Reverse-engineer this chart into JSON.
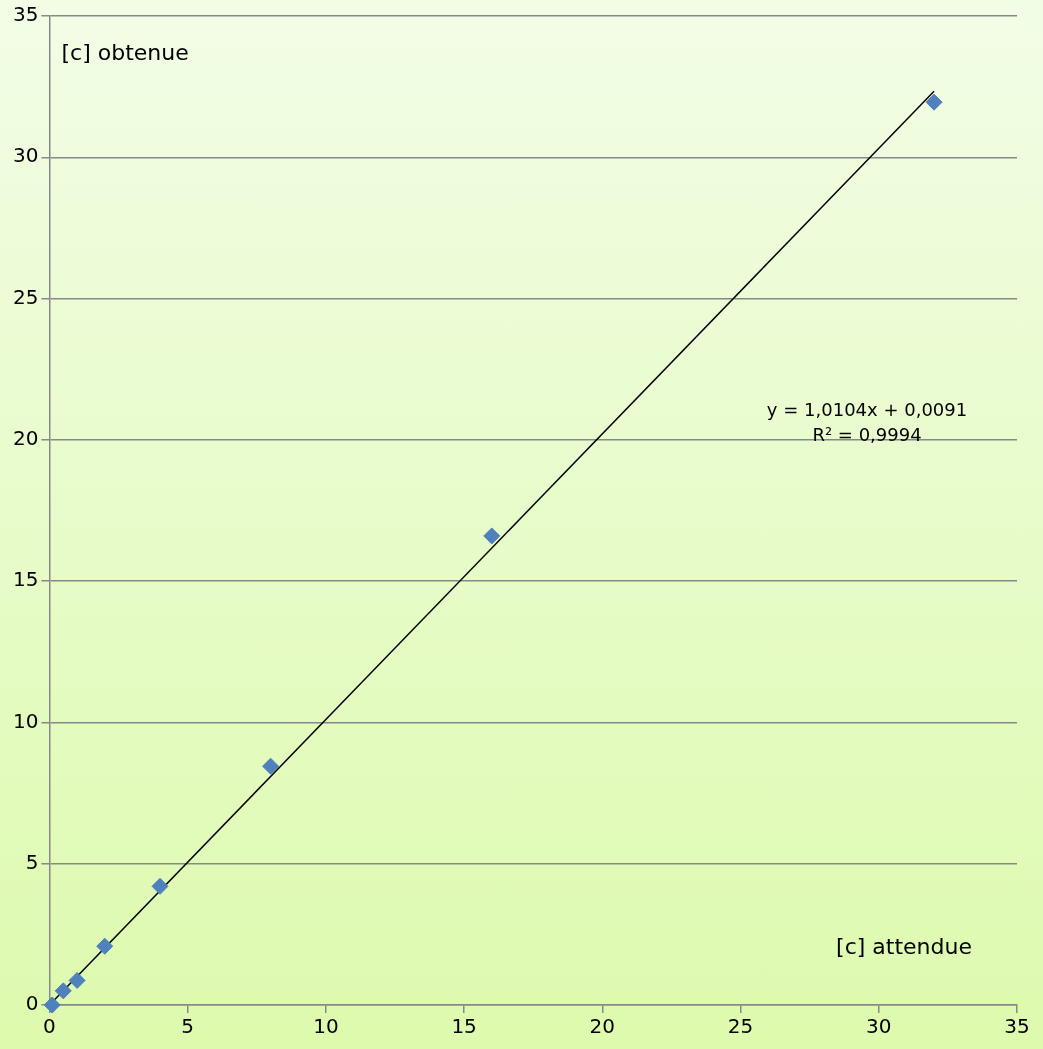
{
  "chart_data": {
    "type": "scatter",
    "xlabel": "[c] attendue",
    "ylabel": "[c] obtenue",
    "annotations": [
      "y = 1,0104x + 0,0091",
      "R² = 0,9994"
    ],
    "xlim": [
      0,
      35
    ],
    "xticks": [
      0,
      5,
      10,
      15,
      20,
      25,
      30,
      35
    ],
    "ylim": [
      0,
      35
    ],
    "yticks": [
      0,
      5,
      10,
      15,
      20,
      25,
      30,
      35
    ],
    "grid": "y",
    "legend": false,
    "marker": "diamond",
    "series": [
      {
        "color": "#4f81bd",
        "x": [
          0.1,
          0.5,
          1,
          2,
          4,
          8,
          16,
          32
        ],
        "values": [
          0,
          0.5,
          0.87,
          2.08,
          4.2,
          8.45,
          16.6,
          31.95
        ]
      },
      {
        "type": "line",
        "color": "#000000",
        "marker": "none",
        "x": [
          0,
          32
        ],
        "values": [
          0,
          32.34
        ]
      }
    ]
  }
}
